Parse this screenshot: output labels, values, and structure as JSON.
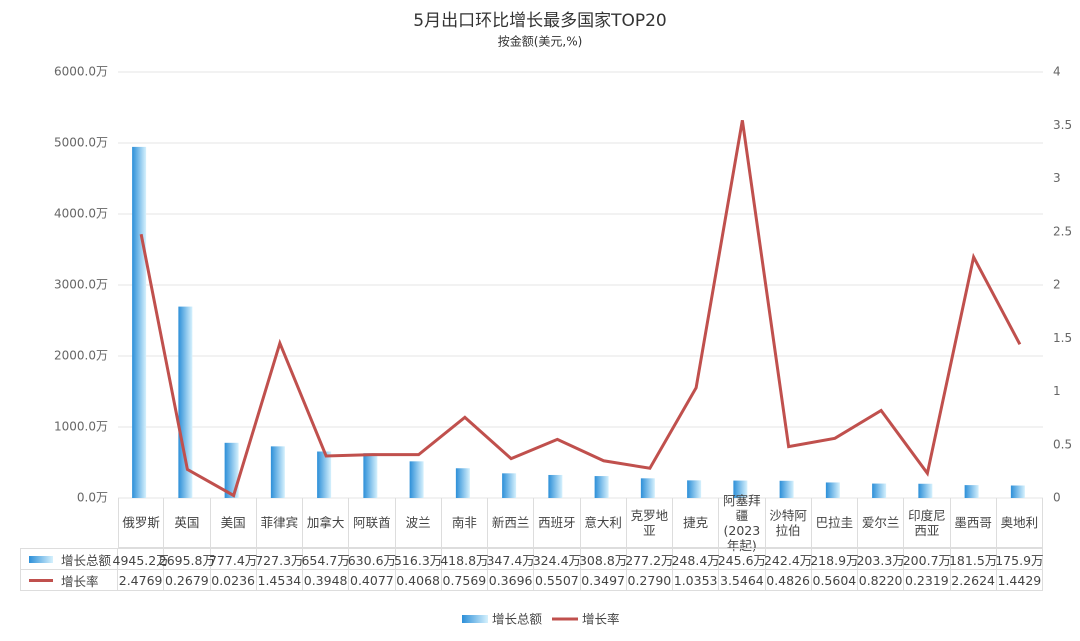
{
  "chart_data": {
    "type": "bar-line",
    "title": "5月出口环比增长最多国家TOP20",
    "subtitle": "按金额(美元,%)",
    "categories": [
      "俄罗斯",
      "英国",
      "美国",
      "菲律宾",
      "加拿大",
      "阿联酋",
      "波兰",
      "南非",
      "新西兰",
      "西班牙",
      "意大利",
      "克罗地亚",
      "捷克",
      "阿塞拜疆(2023年起)",
      "沙特阿拉伯",
      "巴拉圭",
      "爱尔兰",
      "印度尼西亚",
      "墨西哥",
      "奥地利"
    ],
    "series": [
      {
        "name": "增长总额",
        "type": "bar",
        "color": "#3aa0e0",
        "values": [
          4945.2,
          2695.8,
          777.4,
          727.3,
          654.7,
          630.6,
          516.3,
          418.8,
          347.4,
          324.4,
          308.8,
          277.2,
          248.4,
          245.6,
          242.4,
          218.9,
          203.3,
          200.7,
          181.5,
          175.9
        ],
        "value_labels": [
          "4945.2万",
          "2695.8万",
          "777.4万",
          "727.3万",
          "654.7万",
          "630.6万",
          "516.3万",
          "418.8万",
          "347.4万",
          "324.4万",
          "308.8万",
          "277.2万",
          "248.4万",
          "245.6万",
          "242.4万",
          "218.9万",
          "203.3万",
          "200.7万",
          "181.5万",
          "175.9万"
        ]
      },
      {
        "name": "增长率",
        "type": "line",
        "axis": "y2",
        "color": "#c0504d",
        "values": [
          2.4769,
          0.2679,
          0.0236,
          1.4534,
          0.3948,
          0.4077,
          0.4068,
          0.7569,
          0.3696,
          0.5507,
          0.3497,
          0.279,
          1.0353,
          3.5464,
          0.4826,
          0.5604,
          0.822,
          0.2319,
          2.2624,
          1.4429
        ],
        "value_labels": [
          "2.4769",
          "0.2679",
          "0.0236",
          "1.4534",
          "0.3948",
          "0.4077",
          "0.4068",
          "0.7569",
          "0.3696",
          "0.5507",
          "0.3497",
          "0.2790",
          "1.0353",
          "3.5464",
          "0.4826",
          "0.5604",
          "0.8220",
          "0.2319",
          "2.2624",
          "1.4429"
        ]
      }
    ],
    "ylim": [
      0,
      6000
    ],
    "yticks": [
      {
        "value": 0,
        "label": "0.0万"
      },
      {
        "value": 1000,
        "label": "1000.0万"
      },
      {
        "value": 2000,
        "label": "2000.0万"
      },
      {
        "value": 3000,
        "label": "3000.0万"
      },
      {
        "value": 4000,
        "label": "4000.0万"
      },
      {
        "value": 5000,
        "label": "5000.0万"
      },
      {
        "value": 6000,
        "label": "6000.0万"
      }
    ],
    "y2lim": [
      0,
      4
    ],
    "y2ticks": [
      0,
      0.5,
      1,
      1.5,
      2,
      2.5,
      3,
      3.5,
      4
    ],
    "grid": true
  }
}
